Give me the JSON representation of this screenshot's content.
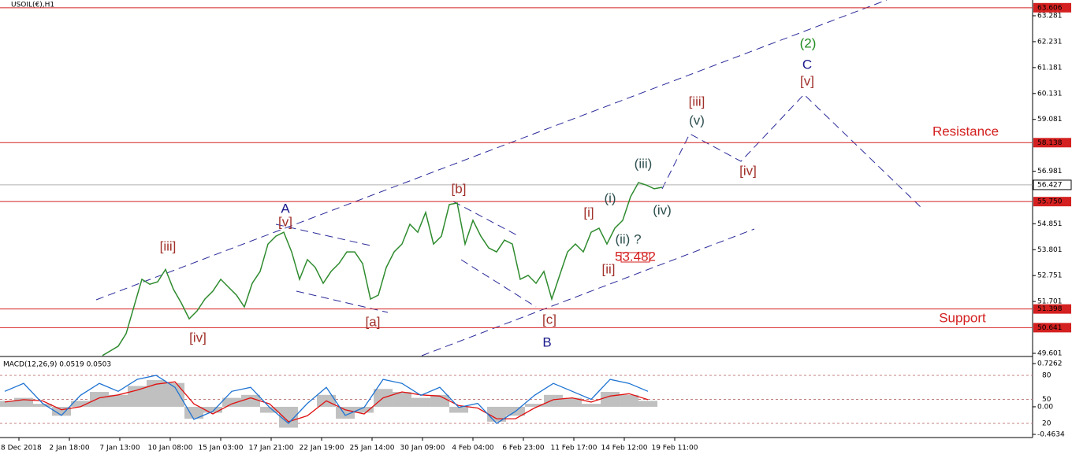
{
  "chart_data": [
    {
      "type": "line",
      "title": "USOIL(€),H1",
      "color": "#2e8b2e",
      "values": [
        49.51,
        49.7,
        49.89,
        50.4,
        51.5,
        52.6,
        52.4,
        52.5,
        53.0,
        52.2,
        51.64,
        51.0,
        51.32,
        51.8,
        52.12,
        52.6,
        52.28,
        51.96,
        51.48,
        52.44,
        52.92,
        54.03,
        54.35,
        54.51,
        53.71,
        52.6,
        53.4,
        53.08,
        52.44,
        52.92,
        53.24,
        53.71,
        53.71,
        53.24,
        51.8,
        51.96,
        53.08,
        53.71,
        54.03,
        54.83,
        54.51,
        55.31,
        54.03,
        54.35,
        55.63,
        55.69,
        54.03,
        54.99,
        54.35,
        53.87,
        53.71,
        54.19,
        54.03,
        52.6,
        52.76,
        52.44,
        52.92,
        51.8,
        52.76,
        53.71,
        54.03,
        53.71,
        54.51,
        54.67,
        54.03,
        54.67,
        54.99,
        55.95,
        56.52,
        56.42,
        56.27,
        56.33
      ],
      "xlim": [
        -13,
        118
      ],
      "ylim": [
        49.505,
        63.919
      ],
      "yticks": [
        63.281,
        62.231,
        61.181,
        60.131,
        59.081,
        56.981,
        54.851,
        53.801,
        52.751,
        51.701,
        49.601
      ],
      "xticks": [
        {
          "value": -10.6,
          "label": "28 Dec 2018"
        },
        {
          "value": -4.2,
          "label": "2 Jan 18:00"
        },
        {
          "value": 2.2,
          "label": "7 Jan 13:00"
        },
        {
          "value": 8.6,
          "label": "10 Jan 08:00"
        },
        {
          "value": 15,
          "label": "15 Jan 03:00"
        },
        {
          "value": 21.4,
          "label": "17 Jan 21:00"
        },
        {
          "value": 27.8,
          "label": "22 Jan 19:00"
        },
        {
          "value": 34.2,
          "label": "25 Jan 14:00"
        },
        {
          "value": 40.6,
          "label": "30 Jan 09:00"
        },
        {
          "value": 47,
          "label": "4 Feb 04:00"
        },
        {
          "value": 53.4,
          "label": "6 Feb 23:00"
        },
        {
          "value": 59.8,
          "label": "11 Feb 17:00"
        },
        {
          "value": 66.2,
          "label": "14 Feb 12:00"
        },
        {
          "value": 72.6,
          "label": "19 Feb 11:00"
        }
      ],
      "levels": [
        63.606,
        58.138,
        {
          "value": 55.75,
          "label": "55.750"
        },
        51.398,
        50.641
      ],
      "level_color": "#d42020",
      "last_price": 56.427,
      "annotations": [
        {
          "text": "[iii]",
          "color": "#a0302a"
        },
        {
          "text": "[iv]",
          "color": "#a0302a"
        },
        {
          "text": "A",
          "color": "#1a1a8c"
        },
        {
          "text": "[v]",
          "color": "#a0302a"
        },
        {
          "text": "[a]",
          "color": "#a0302a"
        },
        {
          "text": "[b]",
          "color": "#a0302a"
        },
        {
          "text": "[c]",
          "color": "#a0302a"
        },
        {
          "text": "B",
          "color": "#1a1a8c"
        },
        {
          "text": "[i]",
          "color": "#a0302a"
        },
        {
          "text": "(i)",
          "color": "#2f4f4f"
        },
        {
          "text": "(ii) ?",
          "color": "#2f4f4f"
        },
        {
          "text": "[ii]",
          "color": "#a0302a"
        },
        {
          "text": "53.482",
          "color": "#d42020"
        },
        {
          "text": "(iii)",
          "color": "#2f4f4f"
        },
        {
          "text": "(iv)",
          "color": "#2f4f4f"
        },
        {
          "text": "[iii]",
          "color": "#a0302a"
        },
        {
          "text": "(v)",
          "color": "#2f4f4f"
        },
        {
          "text": "[iv]",
          "color": "#a0302a"
        },
        {
          "text": "(2)",
          "color": "#1f8a1f"
        },
        {
          "text": "C",
          "color": "#1a1a8c"
        },
        {
          "text": "[v]",
          "color": "#a0302a"
        },
        {
          "text": "Resistance",
          "color": "#d42020"
        },
        {
          "text": "Support",
          "color": "#d42020"
        }
      ]
    },
    {
      "type": "macd",
      "title": "MACD(12,26,9) 0.0519 0.0503",
      "xlim": [
        -0.25,
        54.33
      ],
      "ylim": [
        -0.4634,
        0.7262
      ],
      "y2lim": [
        6.23,
        94.75
      ],
      "yticks": [
        0.7262,
        {
          "value": 0,
          "label": "0.00"
        },
        -0.4634
      ],
      "y2ticks": [
        80,
        50,
        20
      ],
      "series": [
        {
          "color": "#c0c0c0",
          "style": "histogram",
          "values": [
            0.1,
            0.15,
            0.05,
            -0.15,
            0.1,
            0.25,
            0.2,
            0.35,
            0.45,
            0.4,
            -0.2,
            -0.1,
            0.15,
            0.2,
            -0.1,
            -0.35,
            0.0,
            0.2,
            -0.2,
            -0.1,
            0.3,
            0.25,
            0.15,
            0.2,
            -0.1,
            0.0,
            -0.25,
            -0.15,
            0.05,
            0.2,
            0.15,
            0.05,
            0.25,
            0.2,
            0.1
          ]
        },
        {
          "color": "#e01010",
          "values": [
            0.08,
            0.12,
            0.1,
            -0.05,
            0.0,
            0.15,
            0.2,
            0.28,
            0.38,
            0.42,
            0.05,
            -0.12,
            0.05,
            0.15,
            0.05,
            -0.25,
            -0.15,
            0.1,
            -0.05,
            -0.12,
            0.15,
            0.25,
            0.2,
            0.18,
            0.02,
            -0.02,
            -0.2,
            -0.2,
            -0.02,
            0.12,
            0.15,
            0.08,
            0.18,
            0.22,
            0.12
          ]
        },
        {
          "color": "#1e73d2",
          "axis": "y2",
          "values": [
            60,
            70,
            45,
            30,
            55,
            70,
            60,
            75,
            80,
            65,
            25,
            35,
            60,
            65,
            40,
            20,
            45,
            65,
            30,
            40,
            75,
            70,
            55,
            65,
            40,
            45,
            20,
            35,
            55,
            70,
            60,
            50,
            75,
            70,
            60
          ]
        }
      ]
    }
  ]
}
